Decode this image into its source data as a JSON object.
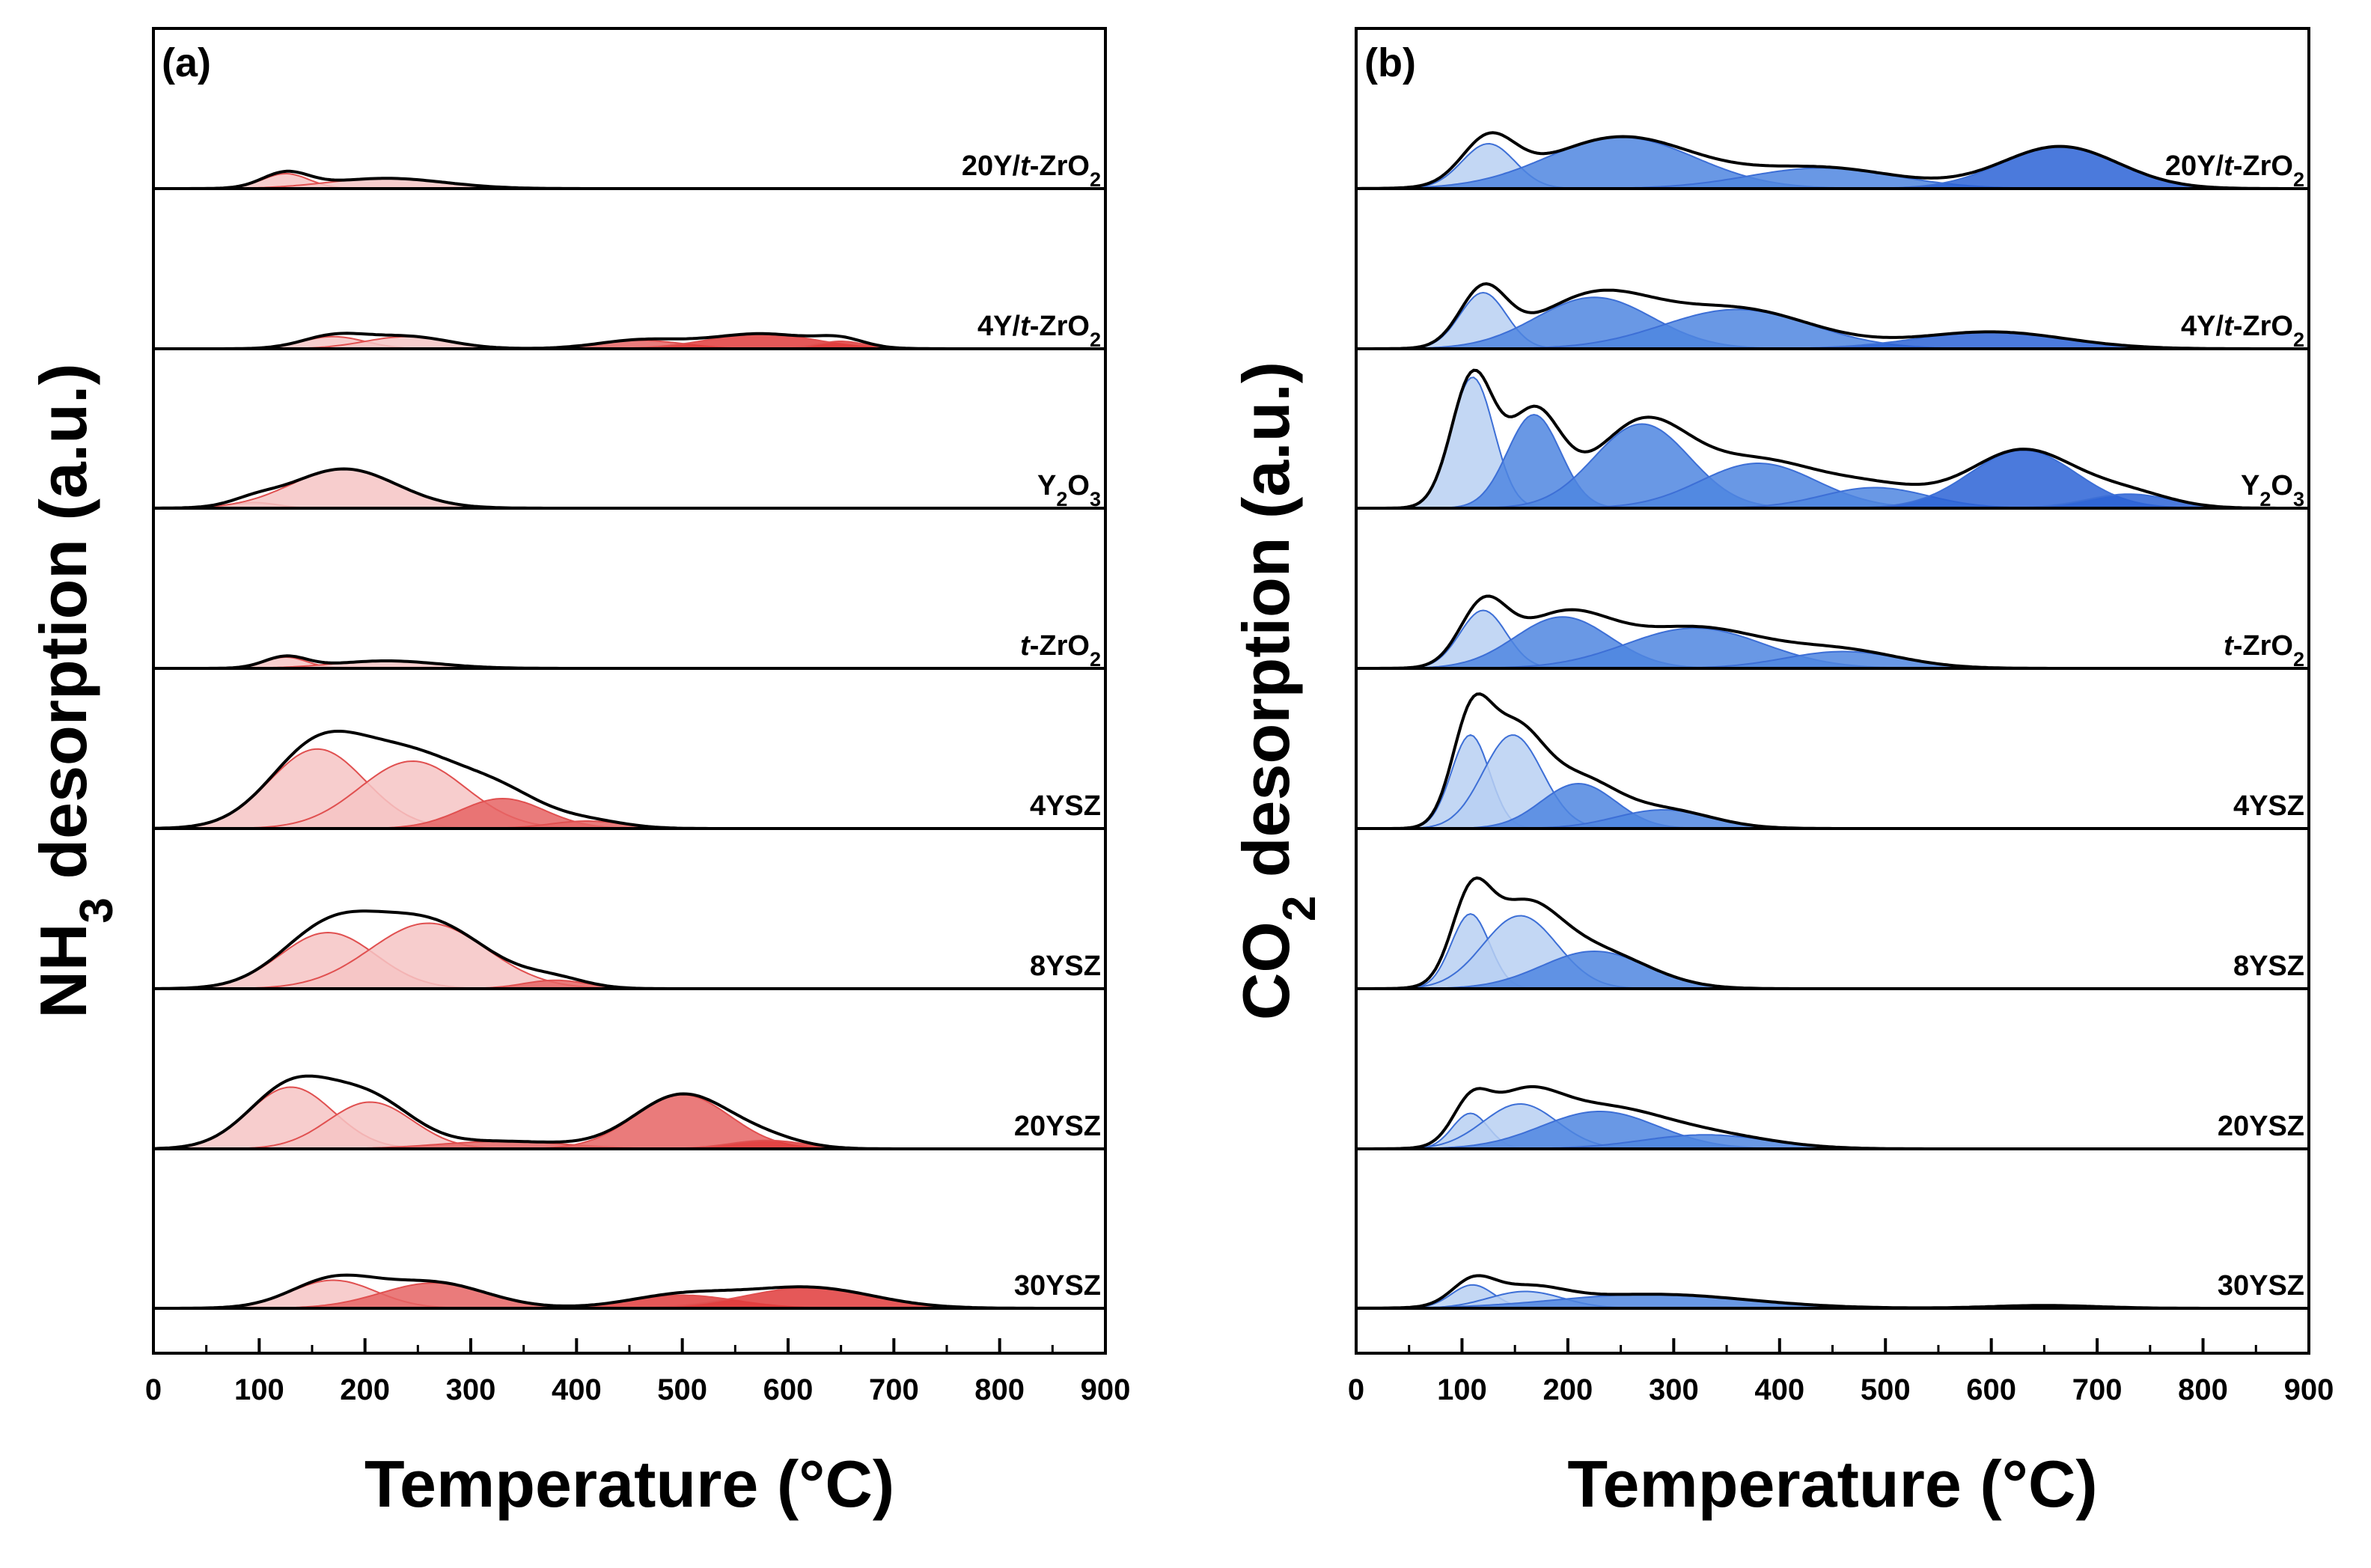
{
  "chart_data": [
    {
      "type": "area",
      "panel_label": "(a)",
      "title": "",
      "xlabel": "Temperature (°C)",
      "ylabel_parts": {
        "pre": "NH",
        "sub": "3",
        "post": " desorption (a.u.)"
      },
      "xlim": [
        0,
        900
      ],
      "xticks": [
        "0",
        "100",
        "200",
        "300",
        "400",
        "500",
        "600",
        "700",
        "800",
        "900"
      ],
      "grid": false,
      "colors": {
        "light": "#f6c4c4",
        "medium": "#f09a9a",
        "dark": "#e66464",
        "deep": "#e03b3b",
        "edge": "#e05050",
        "total": "#000000"
      },
      "series": [
        {
          "name": "20Y/t-ZrO2",
          "label": {
            "a": "20Y/",
            "it": "t",
            "b": "-ZrO",
            "sub": "2",
            "c": ""
          },
          "amp_max": 30,
          "peaks": [
            {
              "center": 125,
              "height": 16,
              "width": 22,
              "shade": "light"
            },
            {
              "center": 220,
              "height": 11,
              "width": 55,
              "shade": "light"
            }
          ]
        },
        {
          "name": "4Y/t-ZrO2",
          "label": {
            "a": "4Y/",
            "it": "t",
            "b": "-ZrO",
            "sub": "2",
            "c": ""
          },
          "amp_max": 30,
          "peaks": [
            {
              "center": 170,
              "height": 13,
              "width": 30,
              "shade": "light"
            },
            {
              "center": 240,
              "height": 13,
              "width": 40,
              "shade": "light"
            },
            {
              "center": 460,
              "height": 9,
              "width": 40,
              "shade": "dark"
            },
            {
              "center": 575,
              "height": 16,
              "width": 50,
              "shade": "deep"
            },
            {
              "center": 650,
              "height": 8,
              "width": 22,
              "shade": "deep"
            }
          ]
        },
        {
          "name": "Y2O3",
          "label": {
            "a": "Y",
            "it": "",
            "b": "",
            "sub": "2",
            "c": "O₃"
          },
          "amp_max": 30,
          "peaks": [
            {
              "center": 95,
              "height": 6,
              "width": 22,
              "shade": "light"
            },
            {
              "center": 180,
              "height": 42,
              "width": 50,
              "shade": "light"
            }
          ]
        },
        {
          "name": "t-ZrO2",
          "label": {
            "a": "",
            "it": "t",
            "b": "-ZrO",
            "sub": "2",
            "c": ""
          },
          "amp_max": 30,
          "peaks": [
            {
              "center": 125,
              "height": 12,
              "width": 20,
              "shade": "light"
            },
            {
              "center": 220,
              "height": 8,
              "width": 50,
              "shade": "light"
            }
          ]
        },
        {
          "name": "4YSZ",
          "label": {
            "a": "4YSZ",
            "it": "",
            "b": "",
            "sub": "",
            "c": ""
          },
          "amp_max": 30,
          "peaks": [
            {
              "center": 155,
              "height": 85,
              "width": 45,
              "shade": "light"
            },
            {
              "center": 245,
              "height": 72,
              "width": 50,
              "shade": "light"
            },
            {
              "center": 330,
              "height": 32,
              "width": 40,
              "shade": "dark"
            },
            {
              "center": 410,
              "height": 8,
              "width": 35,
              "shade": "dark"
            }
          ]
        },
        {
          "name": "8YSZ",
          "label": {
            "a": "8YSZ",
            "it": "",
            "b": "",
            "sub": "",
            "c": ""
          },
          "amp_max": 30,
          "peaks": [
            {
              "center": 165,
              "height": 60,
              "width": 45,
              "shade": "light"
            },
            {
              "center": 260,
              "height": 70,
              "width": 55,
              "shade": "light"
            },
            {
              "center": 380,
              "height": 9,
              "width": 30,
              "shade": "dark"
            }
          ]
        },
        {
          "name": "20YSZ",
          "label": {
            "a": "20YSZ",
            "it": "",
            "b": "",
            "sub": "",
            "c": ""
          },
          "amp_max": 30,
          "peaks": [
            {
              "center": 130,
              "height": 66,
              "width": 40,
              "shade": "light"
            },
            {
              "center": 205,
              "height": 50,
              "width": 40,
              "shade": "light"
            },
            {
              "center": 330,
              "height": 8,
              "width": 60,
              "shade": "dark"
            },
            {
              "center": 500,
              "height": 58,
              "width": 45,
              "shade": "dark"
            },
            {
              "center": 580,
              "height": 9,
              "width": 35,
              "shade": "deep"
            }
          ]
        },
        {
          "name": "30YSZ",
          "label": {
            "a": "30YSZ",
            "it": "",
            "b": "",
            "sub": "",
            "c": ""
          },
          "amp_max": 30,
          "peaks": [
            {
              "center": 170,
              "height": 30,
              "width": 40,
              "shade": "light"
            },
            {
              "center": 265,
              "height": 27,
              "width": 50,
              "shade": "dark"
            },
            {
              "center": 500,
              "height": 14,
              "width": 50,
              "shade": "deep"
            },
            {
              "center": 620,
              "height": 22,
              "width": 60,
              "shade": "deep"
            }
          ]
        }
      ]
    },
    {
      "type": "area",
      "panel_label": "(b)",
      "title": "",
      "xlabel": "Temperature (°C)",
      "ylabel_parts": {
        "pre": "CO",
        "sub": "2",
        "post": " desorption (a.u.)"
      },
      "xlim": [
        0,
        900
      ],
      "xticks": [
        "0",
        "100",
        "200",
        "300",
        "400",
        "500",
        "600",
        "700",
        "800",
        "900"
      ],
      "grid": false,
      "colors": {
        "light": "#b8d0f2",
        "medium": "#7fa8ea",
        "dark": "#4f86e0",
        "deep": "#2b63d6",
        "edge": "#3d6fd6",
        "total": "#000000"
      },
      "series": [
        {
          "name": "20Y/t-ZrO2",
          "label": {
            "a": "20Y/",
            "it": "t",
            "b": "-ZrO",
            "sub": "2",
            "c": ""
          },
          "amp_max": 30,
          "peaks": [
            {
              "center": 125,
              "height": 48,
              "width": 25,
              "shade": "light"
            },
            {
              "center": 250,
              "height": 55,
              "width": 70,
              "shade": "dark"
            },
            {
              "center": 440,
              "height": 22,
              "width": 70,
              "shade": "dark"
            },
            {
              "center": 665,
              "height": 45,
              "width": 55,
              "shade": "deep"
            }
          ]
        },
        {
          "name": "4Y/t-ZrO2",
          "label": {
            "a": "4Y/",
            "it": "t",
            "b": "-ZrO",
            "sub": "2",
            "c": ""
          },
          "amp_max": 30,
          "peaks": [
            {
              "center": 120,
              "height": 60,
              "width": 22,
              "shade": "light"
            },
            {
              "center": 225,
              "height": 55,
              "width": 55,
              "shade": "dark"
            },
            {
              "center": 360,
              "height": 42,
              "width": 70,
              "shade": "dark"
            },
            {
              "center": 600,
              "height": 18,
              "width": 70,
              "shade": "deep"
            }
          ]
        },
        {
          "name": "Y2O3",
          "label": {
            "a": "Y",
            "it": "",
            "b": "",
            "sub": "2",
            "c": "O₃"
          },
          "amp_max": 30,
          "peaks": [
            {
              "center": 110,
              "height": 140,
              "width": 20,
              "shade": "light"
            },
            {
              "center": 168,
              "height": 100,
              "width": 25,
              "shade": "dark"
            },
            {
              "center": 270,
              "height": 90,
              "width": 45,
              "shade": "dark"
            },
            {
              "center": 380,
              "height": 48,
              "width": 55,
              "shade": "dark"
            },
            {
              "center": 490,
              "height": 22,
              "width": 50,
              "shade": "dark"
            },
            {
              "center": 630,
              "height": 62,
              "width": 50,
              "shade": "deep"
            },
            {
              "center": 730,
              "height": 15,
              "width": 40,
              "shade": "deep"
            }
          ]
        },
        {
          "name": "t-ZrO2",
          "label": {
            "a": "",
            "it": "t",
            "b": "-ZrO",
            "sub": "2",
            "c": ""
          },
          "amp_max": 30,
          "peaks": [
            {
              "center": 120,
              "height": 62,
              "width": 22,
              "shade": "light"
            },
            {
              "center": 195,
              "height": 55,
              "width": 45,
              "shade": "dark"
            },
            {
              "center": 320,
              "height": 43,
              "width": 65,
              "shade": "dark"
            },
            {
              "center": 460,
              "height": 18,
              "width": 55,
              "shade": "dark"
            }
          ]
        },
        {
          "name": "4YSZ",
          "label": {
            "a": "4YSZ",
            "it": "",
            "b": "",
            "sub": "",
            "c": ""
          },
          "amp_max": 30,
          "peaks": [
            {
              "center": 108,
              "height": 100,
              "width": 18,
              "shade": "light"
            },
            {
              "center": 148,
              "height": 100,
              "width": 28,
              "shade": "light"
            },
            {
              "center": 210,
              "height": 48,
              "width": 35,
              "shade": "dark"
            },
            {
              "center": 290,
              "height": 20,
              "width": 45,
              "shade": "dark"
            }
          ]
        },
        {
          "name": "8YSZ",
          "label": {
            "a": "8YSZ",
            "it": "",
            "b": "",
            "sub": "",
            "c": ""
          },
          "amp_max": 30,
          "peaks": [
            {
              "center": 108,
              "height": 80,
              "width": 18,
              "shade": "light"
            },
            {
              "center": 155,
              "height": 78,
              "width": 35,
              "shade": "light"
            },
            {
              "center": 225,
              "height": 40,
              "width": 50,
              "shade": "dark"
            }
          ]
        },
        {
          "name": "20YSZ",
          "label": {
            "a": "20YSZ",
            "it": "",
            "b": "",
            "sub": "",
            "c": ""
          },
          "amp_max": 30,
          "peaks": [
            {
              "center": 108,
              "height": 38,
              "width": 17,
              "shade": "light"
            },
            {
              "center": 155,
              "height": 48,
              "width": 35,
              "shade": "light"
            },
            {
              "center": 230,
              "height": 40,
              "width": 55,
              "shade": "dark"
            },
            {
              "center": 330,
              "height": 15,
              "width": 60,
              "shade": "dark"
            }
          ]
        },
        {
          "name": "30YSZ",
          "label": {
            "a": "30YSZ",
            "it": "",
            "b": "",
            "sub": "",
            "c": ""
          },
          "amp_max": 30,
          "peaks": [
            {
              "center": 110,
              "height": 25,
              "width": 20,
              "shade": "light"
            },
            {
              "center": 160,
              "height": 18,
              "width": 35,
              "shade": "light"
            },
            {
              "center": 280,
              "height": 15,
              "width": 90,
              "shade": "dark"
            },
            {
              "center": 650,
              "height": 3,
              "width": 50,
              "shade": "deep"
            }
          ]
        }
      ]
    }
  ]
}
